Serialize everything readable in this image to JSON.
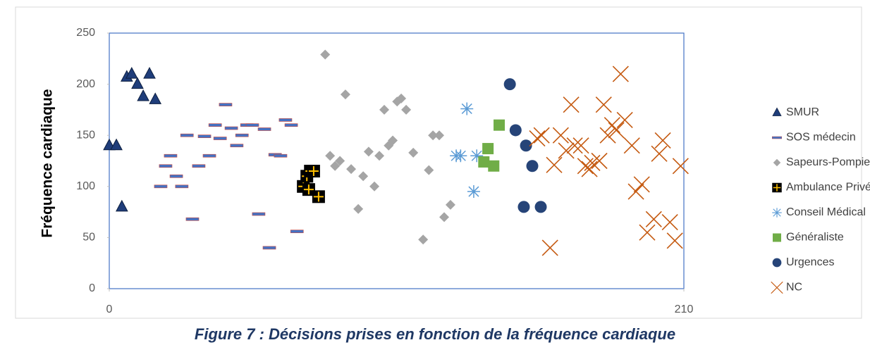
{
  "chart_data": {
    "type": "scatter",
    "title": "Figure 7 : Décisions prises en fonction de la fréquence cardiaque",
    "y_label": "Fréquence cardiaque",
    "xlim": [
      0,
      210
    ],
    "xticks": [
      0,
      210
    ],
    "ylim": [
      0,
      250
    ],
    "yticks": [
      0,
      50,
      100,
      150,
      200,
      250
    ],
    "grid": false,
    "legend": "right",
    "series": [
      {
        "name": "SMUR",
        "color": "#1f3d7a",
        "marker": "triangle",
        "x": [
          0,
          2.6,
          4.6,
          6.4,
          8.2,
          10.3,
          12.4,
          14.7,
          16.8
        ],
        "values": [
          140,
          140,
          80,
          207,
          210,
          200,
          188,
          210,
          185
        ]
      },
      {
        "name": "SOS médecin",
        "color": "#4472c4",
        "marker": "dash",
        "x": [
          18.8,
          20.6,
          22.4,
          24.5,
          26.5,
          28.4,
          30.4,
          32.7,
          34.8,
          36.6,
          38.7,
          40.5,
          42.5,
          44.6,
          46.6,
          48.5,
          50.3,
          52.3,
          54.6,
          56.7,
          58.5,
          60.6,
          62.6,
          64.4,
          66.5,
          68.6
        ],
        "values": [
          100,
          120,
          130,
          110,
          100,
          150,
          68,
          120,
          149,
          130,
          160,
          147,
          180,
          157,
          140,
          150,
          160,
          160,
          73,
          156,
          40,
          131,
          130,
          165,
          160,
          56
        ]
      },
      {
        "name": "Sapeurs-Pompiers",
        "color": "#a5a5a5",
        "marker": "diamond",
        "x": [
          78.9,
          80.7,
          82.5,
          84.3,
          86.3,
          88.4,
          91,
          92.8,
          94.8,
          96.9,
          98.7,
          100.5,
          102.1,
          103.6,
          105.2,
          106.7,
          108.5,
          111.1,
          114.7,
          116.8,
          118.3,
          120.6,
          122.4,
          124.7
        ],
        "values": [
          229,
          130,
          120,
          125,
          190,
          117,
          78,
          110,
          134,
          100,
          130,
          175,
          140,
          145,
          183,
          186,
          175,
          133,
          48,
          116,
          150,
          150,
          70,
          82
        ]
      },
      {
        "name": "Ambulance Privée",
        "color": "#000000",
        "marker": "crossbox",
        "x": [
          70.9,
          72.2,
          73.5,
          74.7,
          72.9,
          76.5
        ],
        "values": [
          100,
          110,
          115,
          115,
          97,
          90
        ]
      },
      {
        "name": "Conseil Médical",
        "color": "#5b9bd5",
        "marker": "asterisk",
        "x": [
          126.8,
          128.4,
          130.7,
          133.2,
          134.3
        ],
        "values": [
          130,
          130,
          176,
          95,
          130
        ]
      },
      {
        "name": "Généraliste",
        "color": "#70ad47",
        "marker": "square",
        "x": [
          138.4,
          136.9,
          140.5,
          142.5
        ],
        "values": [
          137,
          124,
          120,
          160
        ]
      },
      {
        "name": "Urgences",
        "color": "#264478",
        "marker": "circle",
        "x": [
          146.4,
          148.5,
          151.5,
          152.3,
          154.6,
          157.7
        ],
        "values": [
          200,
          155,
          80,
          140,
          120,
          80
        ]
      },
      {
        "name": "NC",
        "color": "#c55a11",
        "marker": "x",
        "x": [
          156.4,
          158,
          161.1,
          162.6,
          165,
          167,
          168.8,
          170.1,
          172.4,
          174,
          175.5,
          176.5,
          179.1,
          180.7,
          182.2,
          183.8,
          185.3,
          186.9,
          188.4,
          191,
          192.5,
          194.6,
          196.6,
          199,
          201,
          202.3,
          204.9,
          206.7,
          208.8
        ],
        "values": [
          147,
          150,
          40,
          121,
          150,
          135,
          180,
          140,
          140,
          120,
          117,
          123,
          125,
          180,
          150,
          160,
          155,
          210,
          165,
          140,
          95,
          102,
          55,
          68,
          132,
          145,
          65,
          47,
          120
        ]
      }
    ]
  }
}
